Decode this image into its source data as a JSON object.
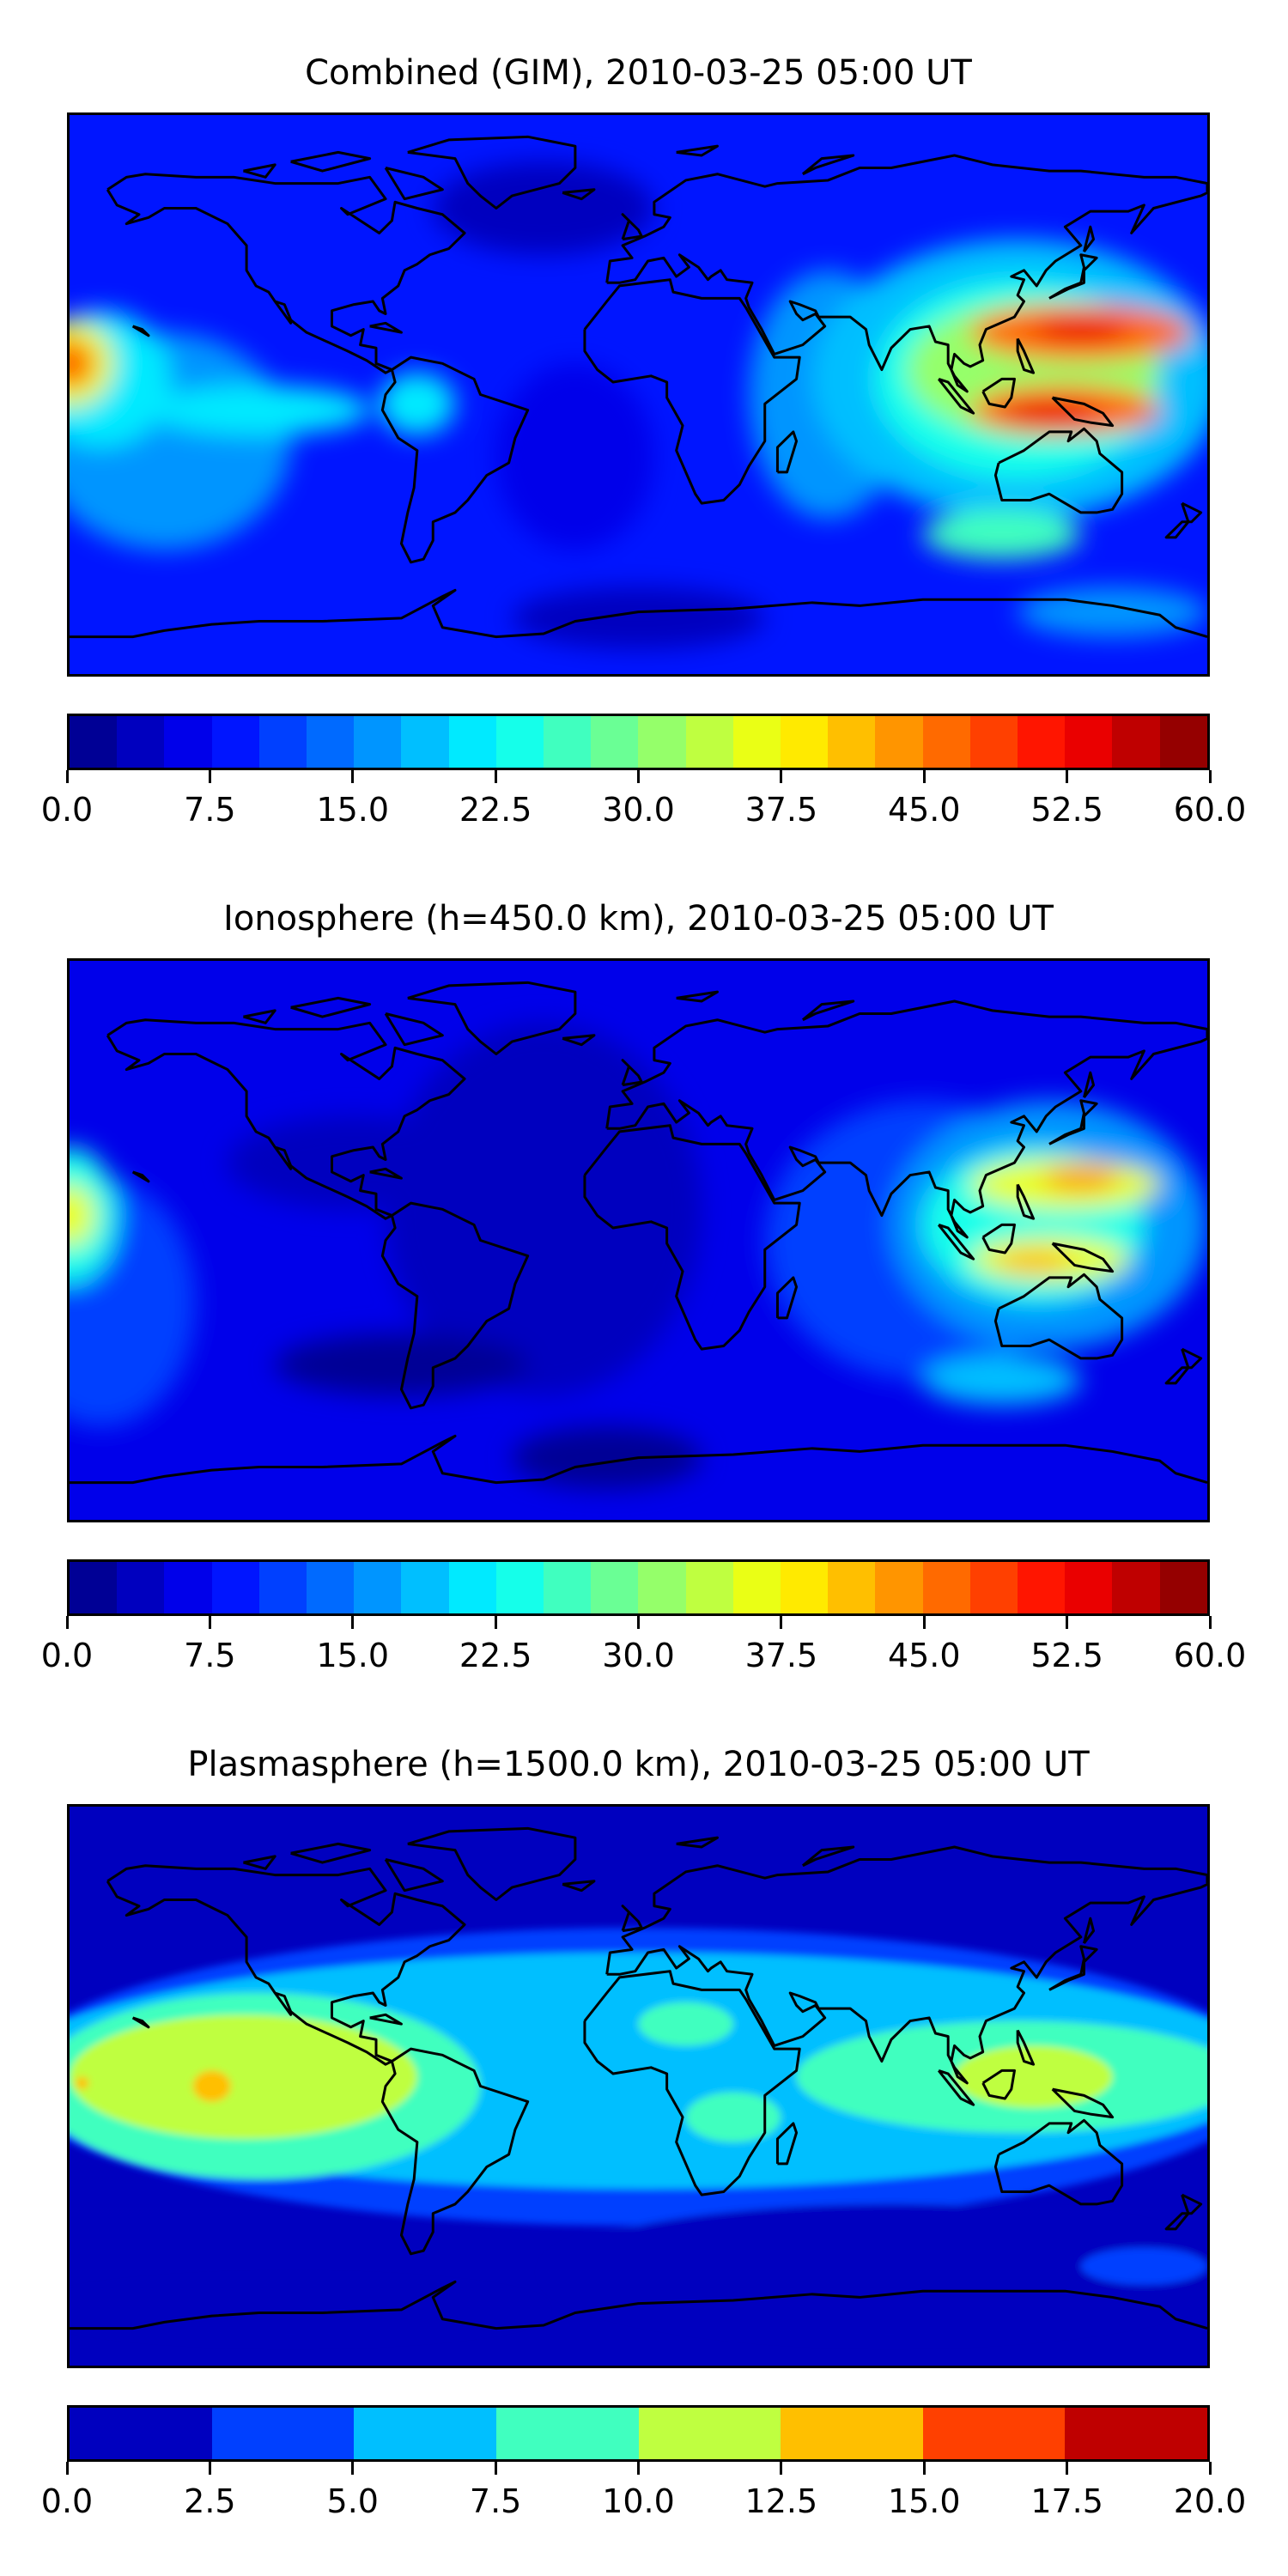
{
  "chart_data": [
    {
      "type": "heatmap",
      "title": "Combined (GIM), 2010-03-25 05:00 UT",
      "colormap": "jet",
      "vmin": 0,
      "vmax": 60,
      "n_levels": 24,
      "colorbar_ticks": [
        "0.0",
        "7.5",
        "15.0",
        "22.5",
        "30.0",
        "37.5",
        "45.0",
        "52.5",
        "60.0"
      ],
      "base_value": 9,
      "features": [
        {
          "lon": -30,
          "lat": 60,
          "rlon": 35,
          "rlat": 15,
          "value": 4
        },
        {
          "lon": -20,
          "lat": -20,
          "rlon": 25,
          "rlat": 30,
          "value": 6
        },
        {
          "lon": 0,
          "lat": -72,
          "rlon": 40,
          "rlat": 10,
          "value": 4
        },
        {
          "lon": -150,
          "lat": -15,
          "rlon": 40,
          "rlat": 35,
          "value": 15
        },
        {
          "lon": -170,
          "lat": 5,
          "rlon": 22,
          "rlat": 22,
          "value": 22
        },
        {
          "lon": -120,
          "lat": -5,
          "rlon": 35,
          "rlat": 8,
          "value": 22
        },
        {
          "lon": -70,
          "lat": -3,
          "rlon": 12,
          "rlat": 10,
          "value": 20
        },
        {
          "lon": -180,
          "lat": 10,
          "rlon": 14,
          "rlat": 14,
          "value": 35
        },
        {
          "lon": -180,
          "lat": 10,
          "rlon": 8,
          "rlat": 8,
          "value": 47
        },
        {
          "lon": 60,
          "lat": 0,
          "rlon": 25,
          "rlat": 40,
          "value": 17
        },
        {
          "lon": 120,
          "lat": 5,
          "rlon": 65,
          "rlat": 45,
          "value": 18
        },
        {
          "lon": 120,
          "lat": 5,
          "rlon": 45,
          "rlat": 32,
          "value": 24
        },
        {
          "lon": 125,
          "lat": 8,
          "rlon": 40,
          "rlat": 22,
          "value": 32
        },
        {
          "lon": 140,
          "lat": 20,
          "rlon": 35,
          "rlat": 9,
          "value": 45
        },
        {
          "lon": 135,
          "lat": -5,
          "rlon": 30,
          "rlat": 8,
          "value": 45
        },
        {
          "lon": 140,
          "lat": 21,
          "rlon": 15,
          "rlat": 4,
          "value": 53
        },
        {
          "lon": 130,
          "lat": -6,
          "rlon": 16,
          "rlat": 4,
          "value": 53
        },
        {
          "lon": 115,
          "lat": -45,
          "rlon": 25,
          "rlat": 8,
          "value": 25
        },
        {
          "lon": 150,
          "lat": -70,
          "rlon": 30,
          "rlat": 8,
          "value": 15
        }
      ]
    },
    {
      "type": "heatmap",
      "title": "Ionosphere  (h=450.0 km), 2010-03-25 05:00 UT",
      "colormap": "jet",
      "vmin": 0,
      "vmax": 60,
      "n_levels": 24,
      "colorbar_ticks": [
        "0.0",
        "7.5",
        "15.0",
        "22.5",
        "30.0",
        "37.5",
        "45.0",
        "52.5",
        "60.0"
      ],
      "base_value": 6,
      "features": [
        {
          "lon": -30,
          "lat": 10,
          "rlon": 50,
          "rlat": 60,
          "value": 3
        },
        {
          "lon": -90,
          "lat": 25,
          "rlon": 40,
          "rlat": 15,
          "value": 3
        },
        {
          "lon": -75,
          "lat": -40,
          "rlon": 40,
          "rlat": 10,
          "value": 2
        },
        {
          "lon": -10,
          "lat": -70,
          "rlon": 30,
          "rlat": 10,
          "value": 2
        },
        {
          "lon": -170,
          "lat": -20,
          "rlon": 30,
          "rlat": 40,
          "value": 11
        },
        {
          "lon": -180,
          "lat": 8,
          "rlon": 15,
          "rlat": 22,
          "value": 24
        },
        {
          "lon": -180,
          "lat": 8,
          "rlon": 8,
          "rlat": 10,
          "value": 36
        },
        {
          "lon": 90,
          "lat": 0,
          "rlon": 50,
          "rlat": 45,
          "value": 11
        },
        {
          "lon": 130,
          "lat": 5,
          "rlon": 50,
          "rlat": 40,
          "value": 16
        },
        {
          "lon": 125,
          "lat": 5,
          "rlon": 35,
          "rlat": 25,
          "value": 24
        },
        {
          "lon": 135,
          "lat": 18,
          "rlon": 30,
          "rlat": 8,
          "value": 35
        },
        {
          "lon": 130,
          "lat": -6,
          "rlon": 25,
          "rlat": 7,
          "value": 35
        },
        {
          "lon": 140,
          "lat": 20,
          "rlon": 12,
          "rlat": 4,
          "value": 44
        },
        {
          "lon": 125,
          "lat": -7,
          "rlon": 12,
          "rlat": 4,
          "value": 41
        },
        {
          "lon": 115,
          "lat": -45,
          "rlon": 25,
          "rlat": 8,
          "value": 18
        }
      ]
    },
    {
      "type": "heatmap",
      "title": "Plasmasphere (h=1500.0 km), 2010-03-25 05:00 UT",
      "colormap": "jet",
      "vmin": 0,
      "vmax": 20,
      "n_levels": 8,
      "colorbar_ticks": [
        "0.0",
        "2.5",
        "5.0",
        "7.5",
        "10.0",
        "12.5",
        "15.0",
        "17.5",
        "20.0"
      ],
      "base_value": 1.2,
      "features": [
        {
          "lon": 0,
          "lat": 3,
          "rlon": 200,
          "rlat": 48,
          "value": 3.7
        },
        {
          "lon": 0,
          "lat": 5,
          "rlon": 200,
          "rlat": 38,
          "value": 6
        },
        {
          "lon": -120,
          "lat": 0,
          "rlon": 70,
          "rlat": 30,
          "value": 8.5
        },
        {
          "lon": 15,
          "lat": 20,
          "rlon": 15,
          "rlat": 7,
          "value": 8.5
        },
        {
          "lon": 120,
          "lat": 3,
          "rlon": 70,
          "rlat": 18,
          "value": 8.5
        },
        {
          "lon": 30,
          "lat": -10,
          "rlon": 15,
          "rlat": 8,
          "value": 8.5
        },
        {
          "lon": -125,
          "lat": 3,
          "rlon": 55,
          "rlat": 20,
          "value": 11
        },
        {
          "lon": 125,
          "lat": 3,
          "rlon": 25,
          "rlat": 10,
          "value": 11
        },
        {
          "lon": -135,
          "lat": 0,
          "rlon": 6,
          "rlat": 5,
          "value": 13
        },
        {
          "lon": -176,
          "lat": 1,
          "rlon": 2,
          "rlat": 2,
          "value": 13
        },
        {
          "lon": 80,
          "lat": -60,
          "rlon": 110,
          "rlat": 22,
          "value": 1.2
        },
        {
          "lon": -110,
          "lat": -72,
          "rlon": 80,
          "rlat": 10,
          "value": 1.2
        },
        {
          "lon": 160,
          "lat": -58,
          "rlon": 20,
          "rlat": 6,
          "value": 3.7
        }
      ]
    }
  ]
}
